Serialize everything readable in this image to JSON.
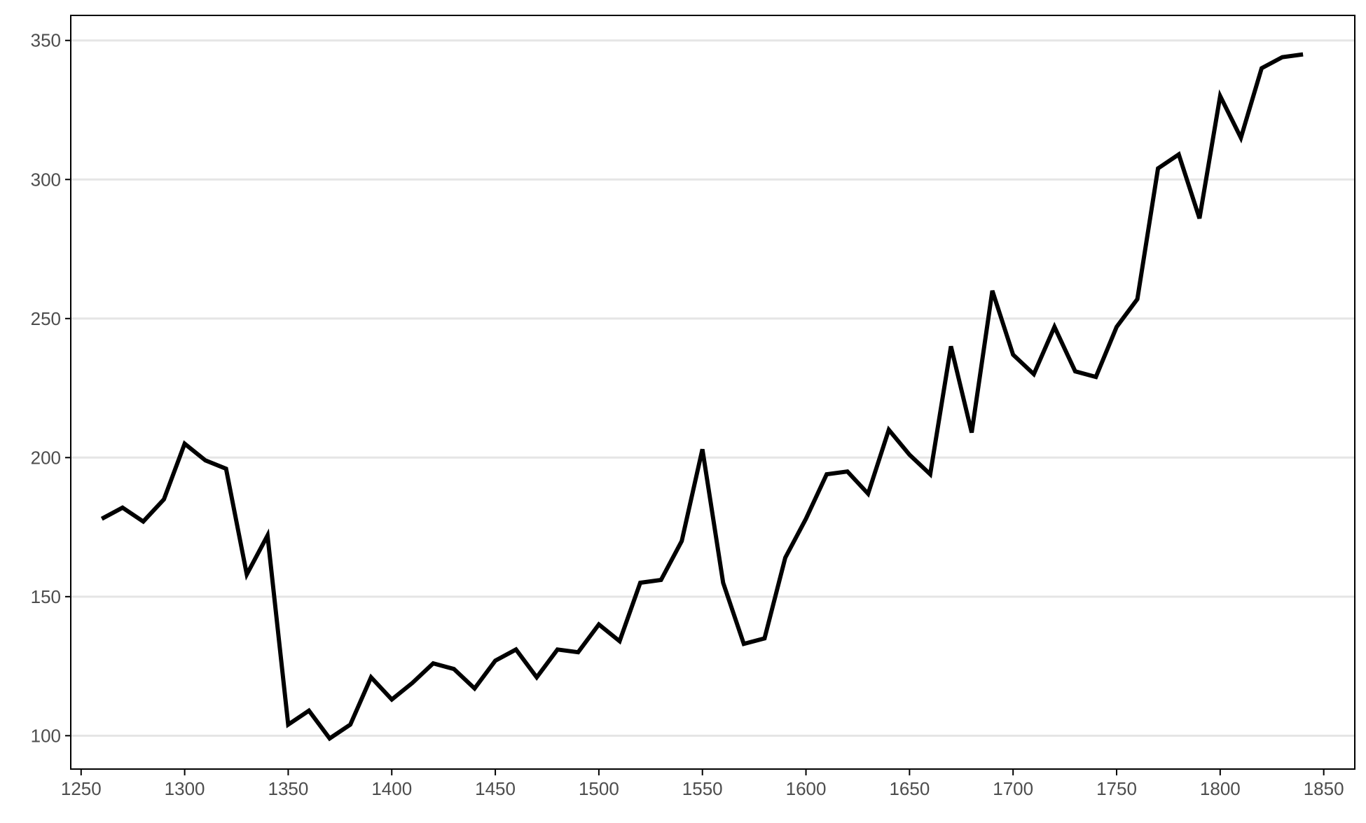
{
  "chart_data": {
    "type": "line",
    "title": "",
    "xlabel": "",
    "ylabel": "",
    "xlim": [
      1245,
      1865
    ],
    "ylim": [
      88,
      359
    ],
    "x_ticks": [
      1250,
      1300,
      1350,
      1400,
      1450,
      1500,
      1550,
      1600,
      1650,
      1700,
      1750,
      1800,
      1850
    ],
    "x_tick_labels": [
      "1250",
      "1300",
      "1350",
      "1400",
      "1450",
      "1500",
      "1550",
      "1600",
      "1650",
      "1700",
      "1750",
      "1800",
      "1850"
    ],
    "y_ticks": [
      100,
      150,
      200,
      250,
      300,
      350
    ],
    "y_tick_labels": [
      "100",
      "150",
      "200",
      "250",
      "300",
      "350"
    ],
    "grid": "horizontal",
    "legend": "none",
    "colors": {
      "line": "#000000",
      "grid": "#e5e5e5",
      "axis": "#000000",
      "tick_text": "#4d4d4d"
    },
    "series": [
      {
        "x": [
          1260,
          1270,
          1280,
          1290,
          1300,
          1310,
          1320,
          1330,
          1340,
          1350,
          1360,
          1370,
          1380,
          1390,
          1400,
          1410,
          1420,
          1430,
          1440,
          1450,
          1460,
          1470,
          1480,
          1490,
          1500,
          1510,
          1520,
          1530,
          1540,
          1550,
          1560,
          1570,
          1580,
          1590,
          1600,
          1610,
          1620,
          1630,
          1640,
          1650,
          1660,
          1670,
          1680,
          1690,
          1700,
          1710,
          1720,
          1730,
          1740,
          1750,
          1760,
          1770,
          1780,
          1790,
          1800,
          1810,
          1820,
          1830,
          1840
        ],
        "values": [
          178,
          182,
          177,
          185,
          205,
          199,
          196,
          158,
          172,
          104,
          109,
          99,
          104,
          121,
          113,
          119,
          126,
          124,
          117,
          127,
          131,
          121,
          131,
          130,
          140,
          134,
          155,
          156,
          170,
          203,
          155,
          133,
          135,
          164,
          178,
          194,
          195,
          187,
          210,
          201,
          194,
          240,
          209,
          260,
          237,
          230,
          247,
          231,
          229,
          247,
          257,
          304,
          309,
          286,
          330,
          315,
          340,
          344,
          345
        ]
      }
    ]
  }
}
